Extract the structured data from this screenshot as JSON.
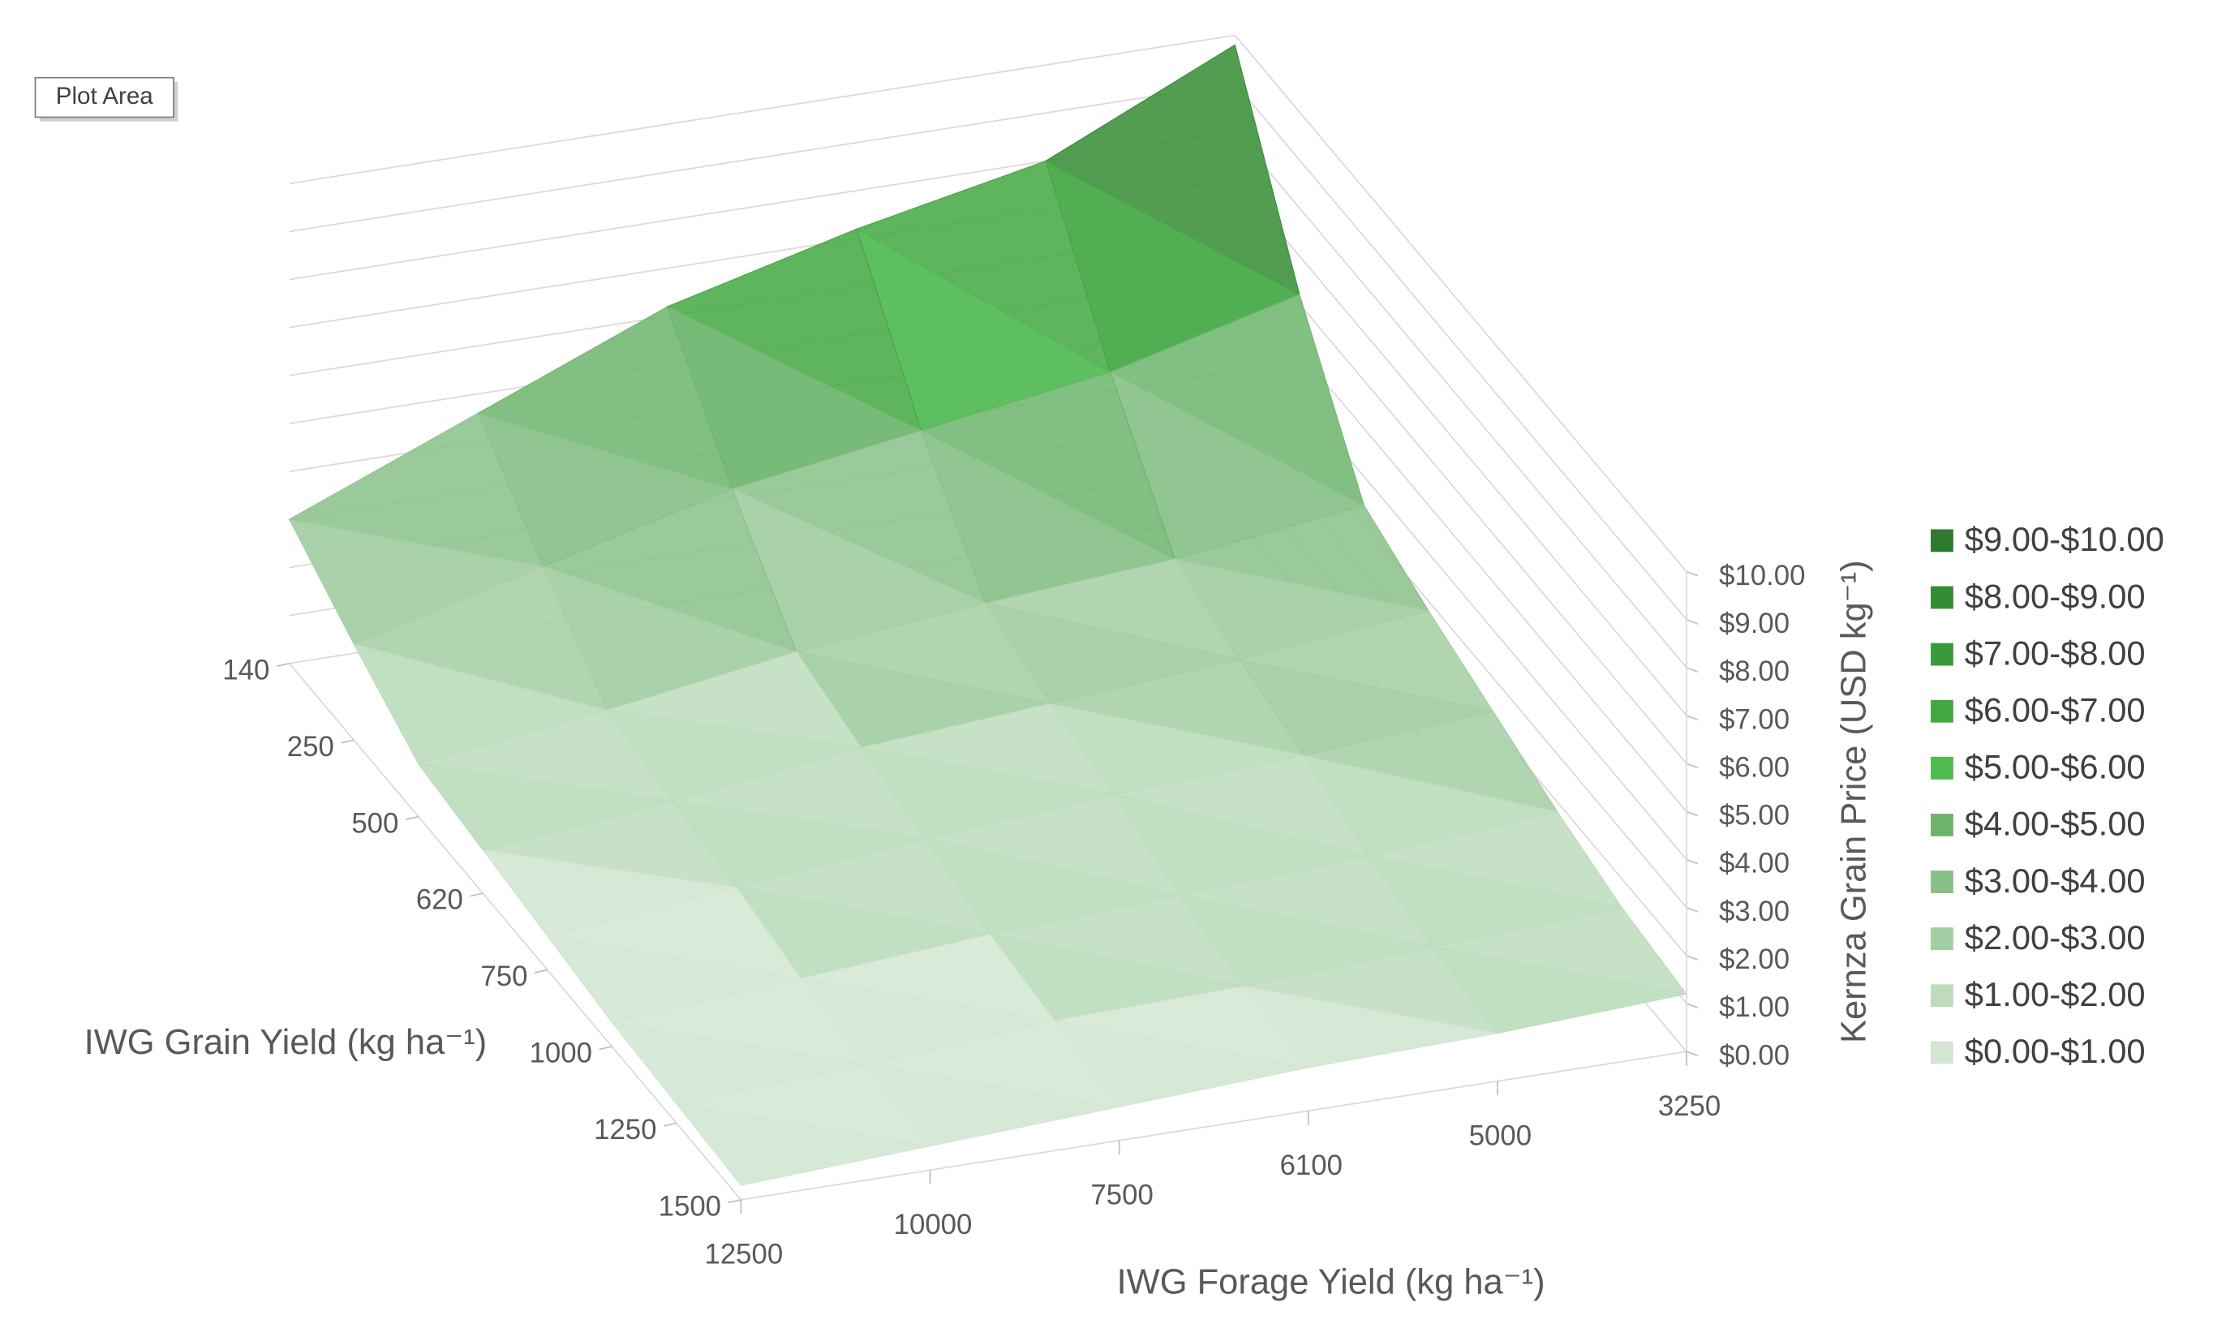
{
  "tooltip": "Plot Area",
  "chart_data": {
    "type": "surface",
    "grain_axis_title": "IWG Grain Yield (kg ha⁻¹)",
    "forage_axis_title": "IWG Forage Yield (kg ha⁻¹)",
    "z_axis_title": "Kernza Grain Price (USD kg⁻¹)",
    "grain_yield": [
      140,
      250,
      500,
      620,
      750,
      1000,
      1250,
      1500
    ],
    "forage_yield": [
      12500,
      10000,
      7500,
      6100,
      5000,
      3250
    ],
    "values": [
      [
        3.0,
        4.6,
        6.2,
        7.2,
        8.0,
        9.8
      ],
      [
        2.0,
        3.0,
        4.0,
        4.6,
        5.2,
        6.2
      ],
      [
        1.1,
        1.6,
        2.2,
        2.6,
        2.9,
        3.4
      ],
      [
        0.9,
        1.3,
        1.8,
        2.1,
        2.4,
        2.8
      ],
      [
        0.7,
        1.1,
        1.5,
        1.8,
        2.0,
        2.3
      ],
      [
        0.5,
        0.8,
        1.1,
        1.3,
        1.5,
        1.8
      ],
      [
        0.4,
        0.6,
        0.9,
        1.0,
        1.2,
        1.4
      ],
      [
        0.3,
        0.5,
        0.7,
        0.9,
        1.0,
        1.2
      ]
    ],
    "zlim": [
      0,
      10
    ],
    "zticks": [
      {
        "value": 0,
        "label": "$0.00"
      },
      {
        "value": 1,
        "label": "$1.00"
      },
      {
        "value": 2,
        "label": "$2.00"
      },
      {
        "value": 3,
        "label": "$3.00"
      },
      {
        "value": 4,
        "label": "$4.00"
      },
      {
        "value": 5,
        "label": "$5.00"
      },
      {
        "value": 6,
        "label": "$6.00"
      },
      {
        "value": 7,
        "label": "$7.00"
      },
      {
        "value": 8,
        "label": "$8.00"
      },
      {
        "value": 9,
        "label": "$9.00"
      },
      {
        "value": 10,
        "label": "$10.00"
      }
    ],
    "legend": [
      {
        "name": "$9.00-$10.00",
        "color": "#2e7a2e"
      },
      {
        "name": "$8.00-$9.00",
        "color": "#348c34"
      },
      {
        "name": "$7.00-$8.00",
        "color": "#3a9a3a"
      },
      {
        "name": "$6.00-$7.00",
        "color": "#42a842"
      },
      {
        "name": "$5.00-$6.00",
        "color": "#4fba4f"
      },
      {
        "name": "$4.00-$5.00",
        "color": "#6cb46c"
      },
      {
        "name": "$3.00-$4.00",
        "color": "#88c088"
      },
      {
        "name": "$2.00-$3.00",
        "color": "#a3cea3"
      },
      {
        "name": "$1.00-$2.00",
        "color": "#bcdcbc"
      },
      {
        "name": "$0.00-$1.00",
        "color": "#d2e6d2"
      }
    ]
  }
}
